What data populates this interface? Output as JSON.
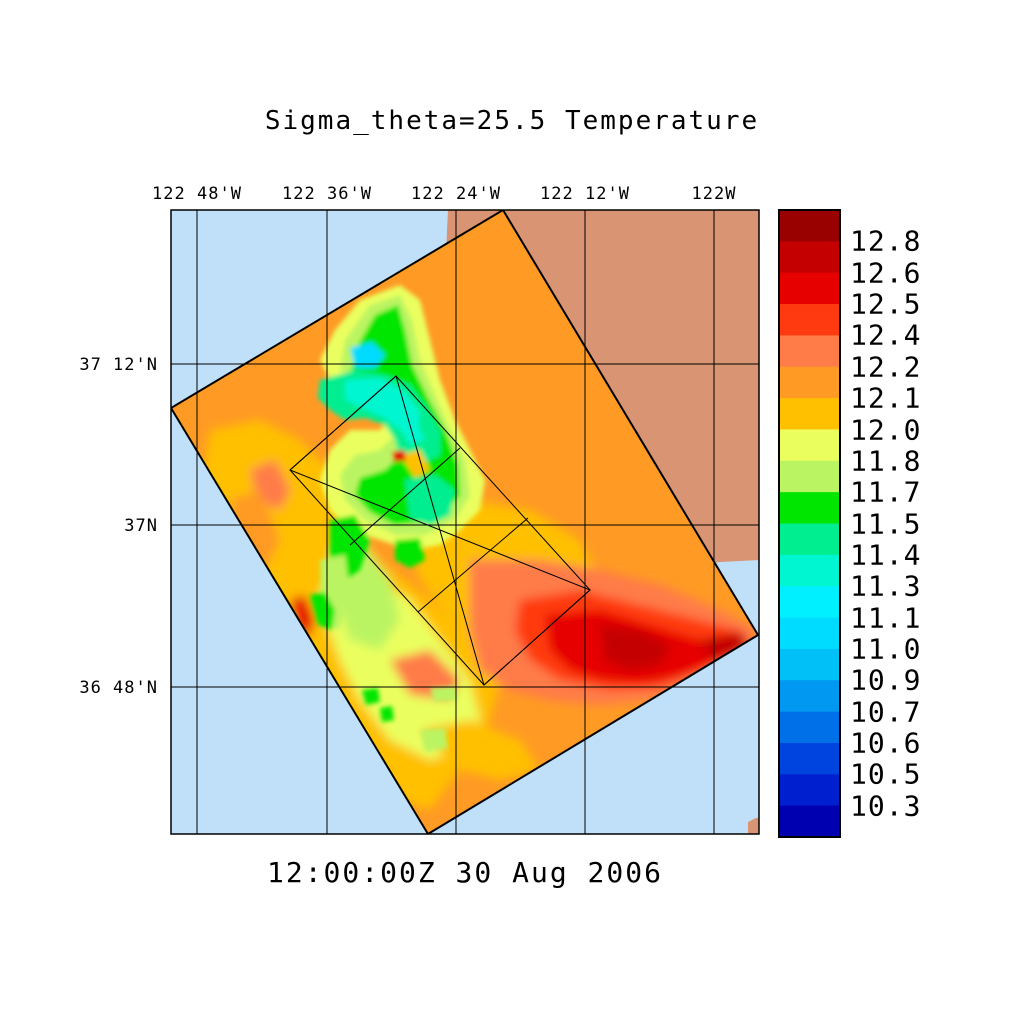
{
  "title": "Sigma_theta=25.5 Temperature",
  "timestamp": "12:00:00Z  30 Aug 2006",
  "map": {
    "lon_ticks": [
      "122 48'W",
      "122 36'W",
      "122 24'W",
      "122 12'W",
      "122W"
    ],
    "lat_ticks": [
      "37 12'N",
      "37N",
      "36 48'N"
    ],
    "land_color": "#d99474",
    "water_color": "#c0e0fa",
    "field_description": "sea temperature on sigma_theta=25.5 isopycnal"
  },
  "colorbar": {
    "labels": [
      "12.8",
      "12.6",
      "12.5",
      "12.4",
      "12.2",
      "12.1",
      "12.0",
      "11.8",
      "11.7",
      "11.5",
      "11.4",
      "11.3",
      "11.1",
      "11.0",
      "10.9",
      "10.7",
      "10.6",
      "10.5",
      "10.3"
    ],
    "colors": [
      "#990000",
      "#c40000",
      "#e60000",
      "#ff3a10",
      "#ff7c48",
      "#ff9a24",
      "#ffc000",
      "#eaff5e",
      "#bbf462",
      "#00e600",
      "#00ee90",
      "#00f6d0",
      "#00f0ff",
      "#00dcff",
      "#00c0f8",
      "#0098f0",
      "#0070e8",
      "#0044e0",
      "#0020d0",
      "#0000b0"
    ]
  }
}
